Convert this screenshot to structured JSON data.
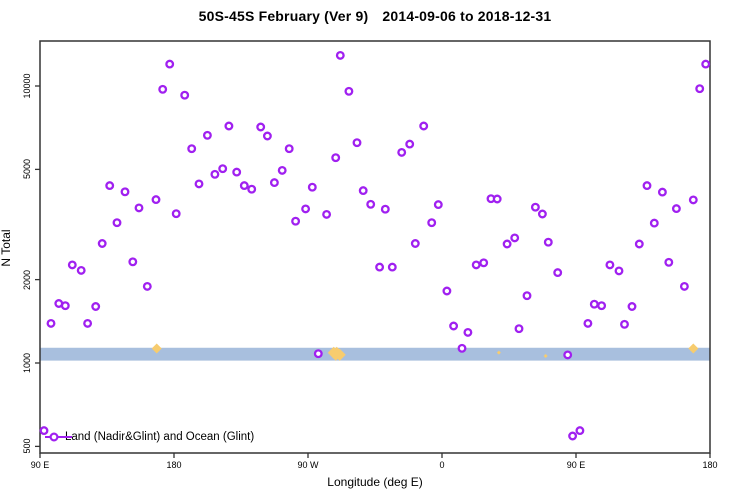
{
  "header": {
    "title_left": "50S-45S February (Ver 9)",
    "title_right": "2014-09-06 to 2018-12-31"
  },
  "legend": {
    "label": "Land (Nadir&Glint) and Ocean (Glint)"
  },
  "colors": {
    "point_purple": "#a020f0",
    "point_fill": "#ffffff",
    "band_blue": "#a8bfde",
    "orange": "#f7cc6e",
    "axis": "#333333",
    "text": "#000000"
  },
  "chart_data": {
    "type": "scatter",
    "title": "50S-45S February (Ver 9)   2014-09-06 to 2018-12-31",
    "xlabel": "Longitude (deg E)",
    "ylabel": "N Total",
    "x_axis": {
      "note": "longitude axis runs eastward 90E -> 180 -> 90W -> 0 -> 90E -> 180",
      "deg_min": 90,
      "deg_max": 540,
      "ticks": [
        {
          "deg": 90,
          "label": "90 E"
        },
        {
          "deg": 180,
          "label": "180"
        },
        {
          "deg": 270,
          "label": "90 W"
        },
        {
          "deg": 360,
          "label": "0"
        },
        {
          "deg": 450,
          "label": "90 E"
        },
        {
          "deg": 540,
          "label": "180"
        }
      ]
    },
    "y_axis": {
      "scale": "log10",
      "min": 460,
      "max": 15000,
      "ticks": [
        {
          "value": 500,
          "label": "500"
        },
        {
          "value": 1000,
          "label": "1000"
        },
        {
          "value": 2000,
          "label": "2000"
        },
        {
          "value": 5000,
          "label": "5000"
        },
        {
          "value": 10000,
          "label": "10000"
        }
      ]
    },
    "band": {
      "n_min": 1020,
      "n_max": 1135,
      "color": "#a8bfde"
    },
    "series": [
      {
        "name": "Land (Nadir&Glint) and Ocean (Glint)",
        "marker": "open-circle-purple",
        "points": [
          [
            177.1,
            12000
          ],
          [
            172.4,
            9730
          ],
          [
            187.2,
            9260
          ],
          [
            202.4,
            6640
          ],
          [
            191.9,
            5940
          ],
          [
            196.8,
            4430
          ],
          [
            136.8,
            4370
          ],
          [
            147.1,
            4150
          ],
          [
            167.9,
            3890
          ],
          [
            156.5,
            3630
          ],
          [
            181.5,
            3460
          ],
          [
            141.7,
            3210
          ],
          [
            131.8,
            2700
          ],
          [
            291.7,
            12900
          ],
          [
            297.5,
            9570
          ],
          [
            216.9,
            7170
          ],
          [
            238.2,
            7110
          ],
          [
            242.7,
            6600
          ],
          [
            257.4,
            5940
          ],
          [
            302.9,
            6240
          ],
          [
            288.6,
            5510
          ],
          [
            212.7,
            5030
          ],
          [
            207.5,
            4800
          ],
          [
            222.1,
            4890
          ],
          [
            252.7,
            4960
          ],
          [
            247.4,
            4480
          ],
          [
            227.2,
            4370
          ],
          [
            232.2,
            4240
          ],
          [
            272.9,
            4310
          ],
          [
            307.1,
            4190
          ],
          [
            312.1,
            3740
          ],
          [
            268.4,
            3600
          ],
          [
            282.5,
            3440
          ],
          [
            261.7,
            3250
          ],
          [
            347.7,
            7170
          ],
          [
            338.3,
            6170
          ],
          [
            332.9,
            5760
          ],
          [
            321.9,
            3590
          ],
          [
            357.5,
            3730
          ],
          [
            353.1,
            3210
          ],
          [
            342.1,
            2700
          ],
          [
            392.9,
            3920
          ],
          [
            397.1,
            3910
          ],
          [
            422.7,
            3650
          ],
          [
            427.4,
            3450
          ],
          [
            403.7,
            2690
          ],
          [
            408.8,
            2830
          ],
          [
            431.4,
            2730
          ],
          [
            537.1,
            12000
          ],
          [
            533.1,
            9780
          ],
          [
            497.7,
            4370
          ],
          [
            508.0,
            4140
          ],
          [
            517.4,
            3610
          ],
          [
            528.8,
            3880
          ],
          [
            502.6,
            3200
          ],
          [
            492.5,
            2690
          ],
          [
            111.7,
            2260
          ],
          [
            117.7,
            2160
          ],
          [
            152.3,
            2320
          ],
          [
            162.1,
            1890
          ],
          [
            102.6,
            1640
          ],
          [
            107.0,
            1610
          ],
          [
            127.4,
            1600
          ],
          [
            97.4,
            1390
          ],
          [
            122.0,
            1390
          ],
          [
            92.7,
            570
          ],
          [
            276.9,
            1080
          ],
          [
            318.1,
            2220
          ],
          [
            326.6,
            2220
          ],
          [
            383.0,
            2260
          ],
          [
            388.0,
            2300
          ],
          [
            363.3,
            1820
          ],
          [
            417.1,
            1750
          ],
          [
            367.8,
            1360
          ],
          [
            377.4,
            1290
          ],
          [
            411.7,
            1330
          ],
          [
            373.4,
            1130
          ],
          [
            437.7,
            2120
          ],
          [
            472.8,
            2260
          ],
          [
            478.9,
            2150
          ],
          [
            512.3,
            2310
          ],
          [
            522.8,
            1890
          ],
          [
            462.3,
            1630
          ],
          [
            467.2,
            1610
          ],
          [
            487.6,
            1600
          ],
          [
            458.0,
            1390
          ],
          [
            482.6,
            1380
          ],
          [
            444.4,
            1070
          ],
          [
            447.7,
            545
          ],
          [
            452.6,
            570
          ]
        ]
      },
      {
        "name": "flagged-orange-markers",
        "marker": "orange-diamond",
        "points_detail": [
          {
            "lon": 168.4,
            "n": 1100,
            "size": "medium"
          },
          {
            "lon": 289.3,
            "n": 1080,
            "size": "large"
          },
          {
            "lon": 398.2,
            "n": 1090,
            "size": "small"
          },
          {
            "lon": 429.6,
            "n": 1060,
            "size": "small"
          },
          {
            "lon": 528.8,
            "n": 1100,
            "size": "medium"
          }
        ]
      }
    ],
    "legend_position": "bottom-left-inside",
    "grid": false
  }
}
